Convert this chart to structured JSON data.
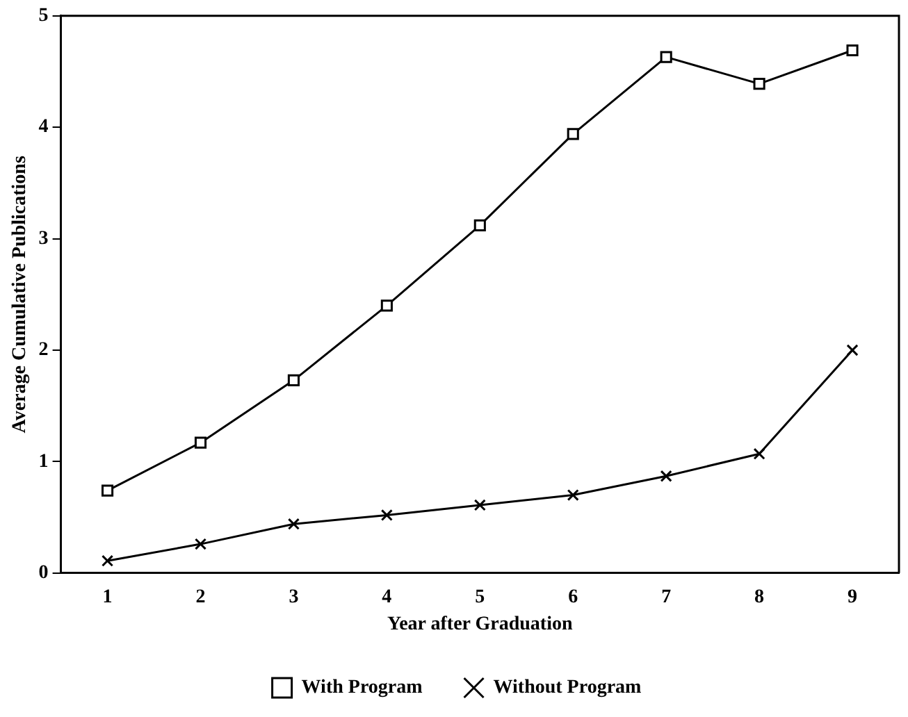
{
  "chart_data": {
    "type": "line",
    "xlabel": "Year after Graduation",
    "ylabel": "Average Cumulative Publications",
    "categories": [
      "1",
      "2",
      "3",
      "4",
      "5",
      "6",
      "7",
      "8",
      "9"
    ],
    "series": [
      {
        "name": "With Program",
        "color": "#000000",
        "marker": "square",
        "values": [
          0.74,
          1.17,
          1.73,
          2.4,
          3.12,
          3.94,
          4.63,
          4.39,
          4.69
        ]
      },
      {
        "name": "Without Program",
        "color": "#000000",
        "marker": "cross",
        "values": [
          0.11,
          0.26,
          0.44,
          0.52,
          0.61,
          0.7,
          0.87,
          1.07,
          2.0
        ]
      }
    ],
    "ylim": [
      0,
      5
    ],
    "yticks": [
      0,
      1,
      2,
      3,
      4,
      5
    ],
    "grid": false,
    "legend": "bottom",
    "line_style": "solid"
  }
}
